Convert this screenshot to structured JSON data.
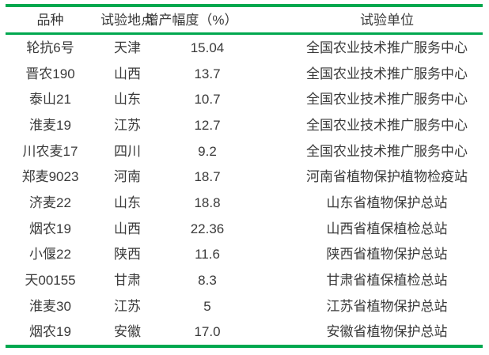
{
  "table": {
    "rule_color": "#00A84F",
    "text_color": "#3a3a3a",
    "columns": [
      "品种",
      "试验地点",
      "增产幅度（%）",
      "试验单位"
    ],
    "rows": [
      [
        "轮抗6号",
        "天津",
        "15.04",
        "全国农业技术推广服务中心"
      ],
      [
        "晋农190",
        "山西",
        "13.7",
        "全国农业技术推广服务中心"
      ],
      [
        "泰山21",
        "山东",
        "10.7",
        "全国农业技术推广服务中心"
      ],
      [
        "淮麦19",
        "江苏",
        "12.7",
        "全国农业技术推广服务中心"
      ],
      [
        "川农麦17",
        "四川",
        "9.2",
        "全国农业技术推广服务中心"
      ],
      [
        "郑麦9023",
        "河南",
        "18.7",
        "河南省植物保护植物检疫站"
      ],
      [
        "济麦22",
        "山东",
        "18.8",
        "山东省植物保护总站"
      ],
      [
        "烟农19",
        "山西",
        "22.36",
        "山西省植保植检总站"
      ],
      [
        "小偃22",
        "陕西",
        "11.6",
        "陕西省植物保护总站"
      ],
      [
        "天00155",
        "甘肃",
        "8.3",
        "甘肃省植保植检总站"
      ],
      [
        "淮麦30",
        "江苏",
        "5",
        "江苏省植物保护总站"
      ],
      [
        "烟农19",
        "安徽",
        "17.0",
        "安徽省植物保护总站"
      ]
    ]
  }
}
